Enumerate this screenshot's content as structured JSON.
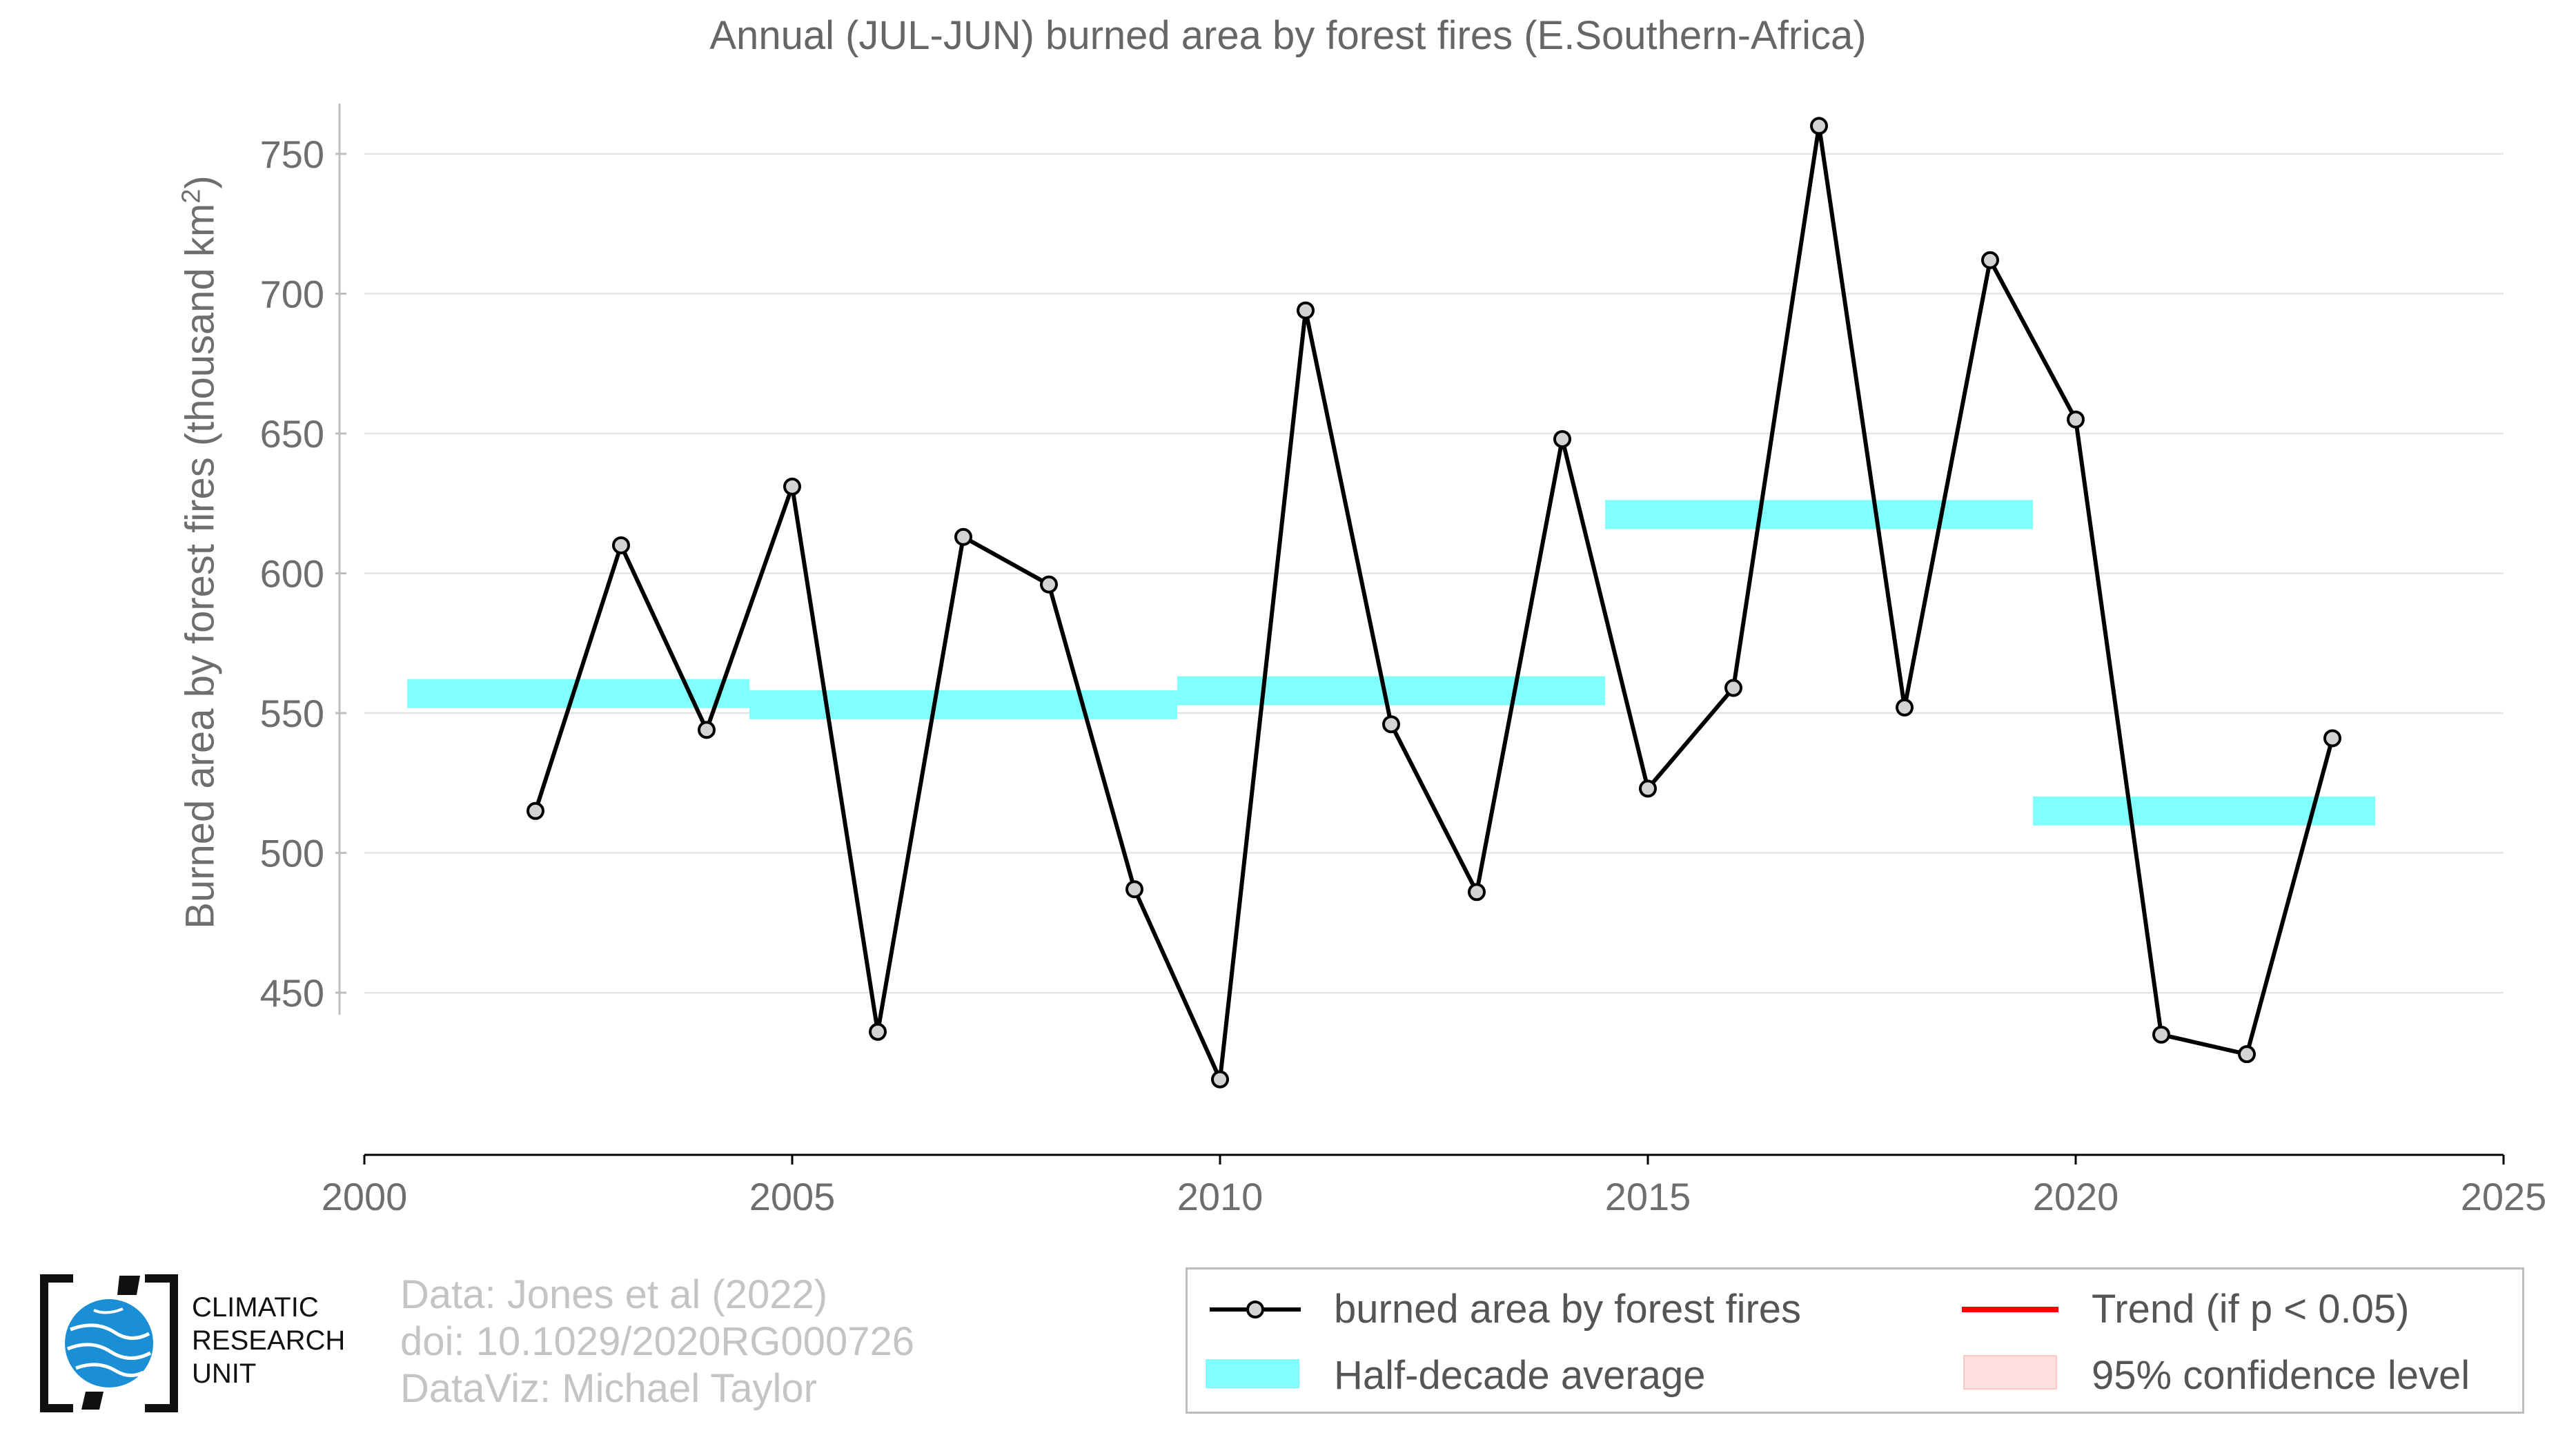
{
  "title": "Annual (JUL-JUN) burned area by forest fires (E.Southern-Africa)",
  "ylabel_main": "Burned area by forest fires (thousand km",
  "ylabel_sup": "2",
  "ylabel_close": ")",
  "credits": {
    "line1": "Data: Jones et al (2022)",
    "line2": "doi: 10.1029/2020RG000726",
    "line3": "DataViz: Michael Taylor"
  },
  "logo": {
    "line1": "CLIMATIC",
    "line2": "RESEARCH",
    "line3": "UNIT"
  },
  "legend": {
    "series": "burned area by forest fires",
    "half_decade": "Half-decade average",
    "trend": "Trend (if p < 0.05)",
    "confidence": "95% confidence level"
  },
  "colors": {
    "line": "#000000",
    "marker_fill": "#d3d3d3",
    "half_decade": "#80ffff",
    "trend": "#ff0000",
    "confidence": "#ffdede",
    "grid": "#e5e5e5",
    "text": "#666666"
  },
  "chart_data": {
    "type": "line",
    "title": "Annual (JUL-JUN) burned area by forest fires (E.Southern-Africa)",
    "xlabel": "",
    "ylabel": "Burned area by forest fires (thousand km2)",
    "xlim": [
      2000,
      2025
    ],
    "ylim": [
      392,
      768
    ],
    "xticks": [
      2000,
      2005,
      2010,
      2015,
      2020,
      2025
    ],
    "yticks": [
      450,
      500,
      550,
      600,
      650,
      700,
      750
    ],
    "grid": "horizontal",
    "legend_position": "bottom-right",
    "series": [
      {
        "name": "burned area by forest fires",
        "x": [
          2002,
          2003,
          2004,
          2005,
          2006,
          2007,
          2008,
          2009,
          2010,
          2011,
          2012,
          2013,
          2014,
          2015,
          2016,
          2017,
          2018,
          2019,
          2020,
          2021,
          2022,
          2023
        ],
        "values": [
          515,
          610,
          544,
          631,
          436,
          613,
          596,
          487,
          419,
          694,
          546,
          486,
          648,
          523,
          559,
          760,
          552,
          712,
          655,
          435,
          428,
          541
        ]
      }
    ],
    "half_decade_average": [
      {
        "x_start": 2000.5,
        "x_end": 2004.5,
        "value": 557
      },
      {
        "x_start": 2004.5,
        "x_end": 2009.5,
        "value": 553
      },
      {
        "x_start": 2009.5,
        "x_end": 2014.5,
        "value": 558
      },
      {
        "x_start": 2014.5,
        "x_end": 2019.5,
        "value": 621
      },
      {
        "x_start": 2019.5,
        "x_end": 2023.5,
        "value": 515
      }
    ]
  }
}
